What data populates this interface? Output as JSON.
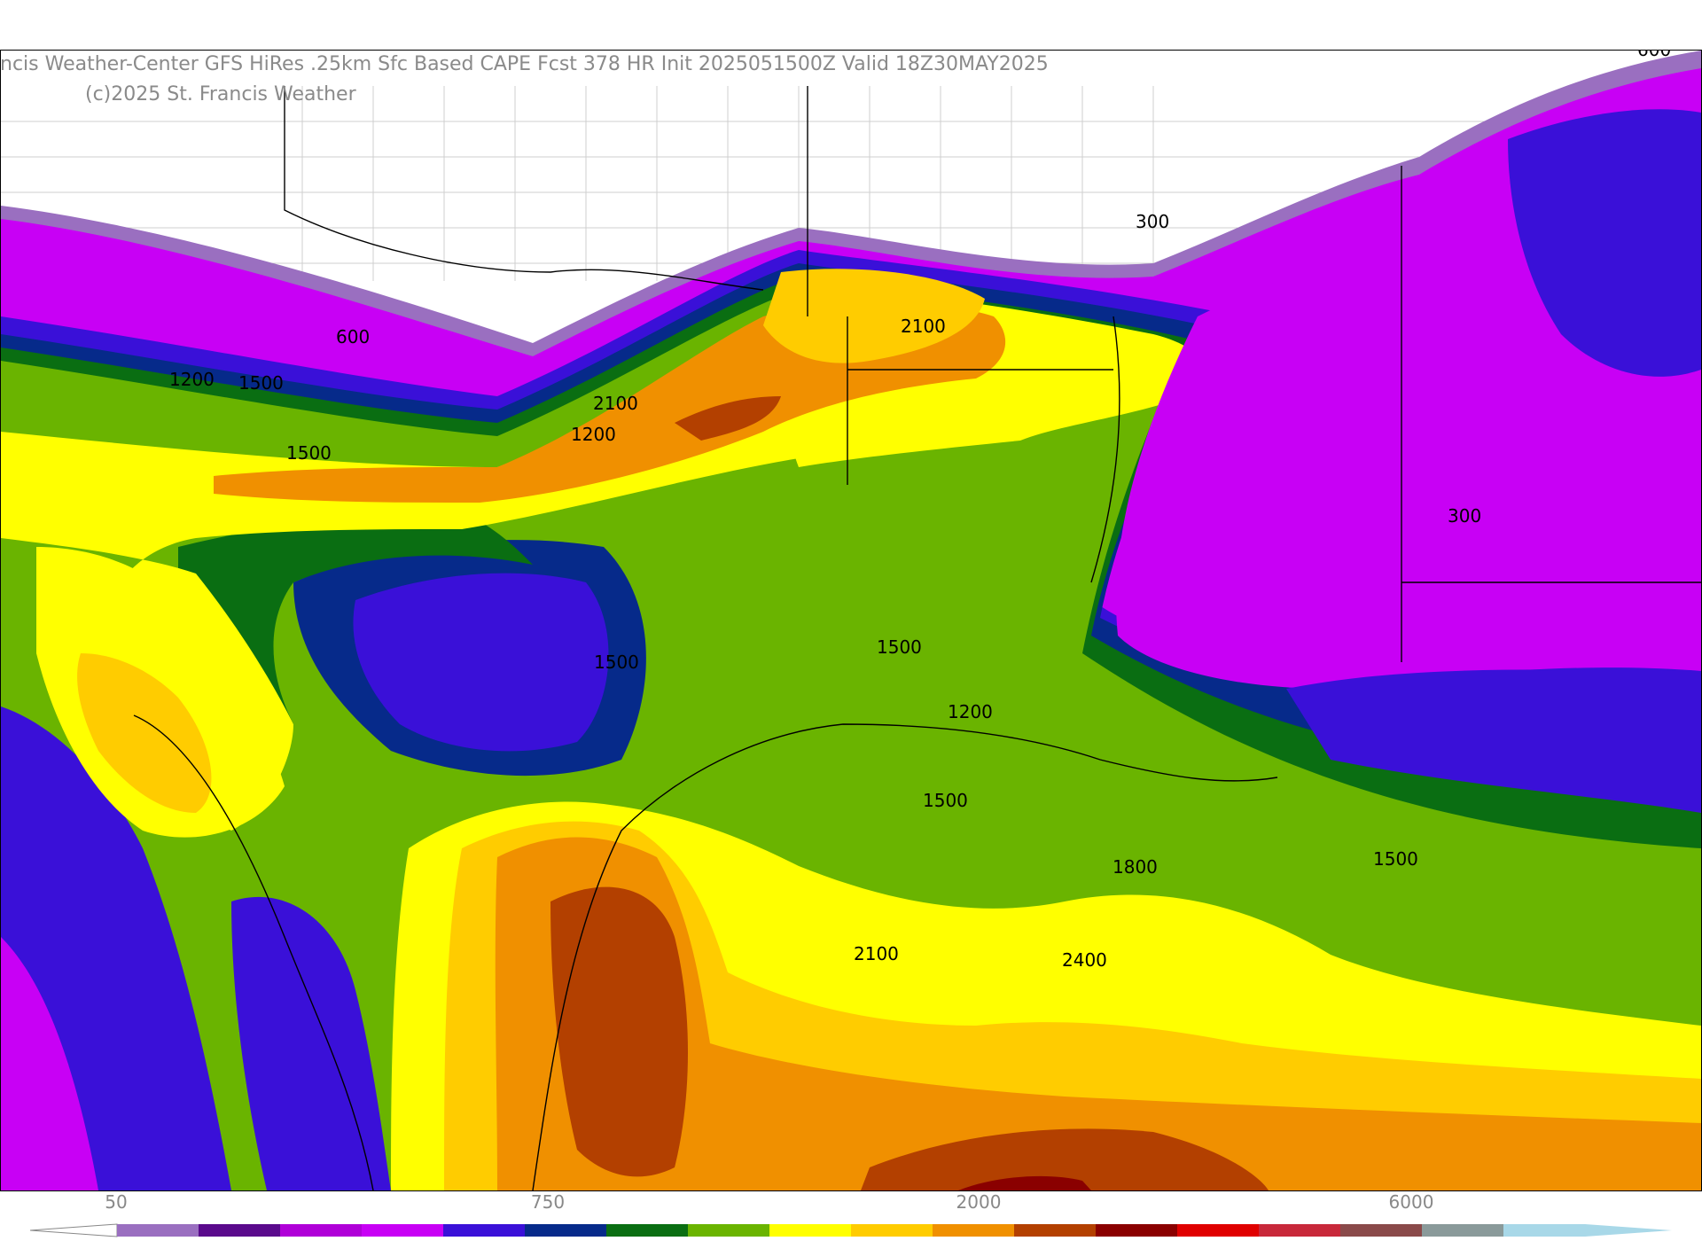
{
  "map": {
    "title": "ncis Weather-Center GFS HiRes .25km Sfc Based CAPE  Fcst 378 HR Init 2025051500Z  Valid 18Z30MAY2025",
    "copyright": "(c)2025 St. Francis Weather",
    "contour_labels": [
      "600",
      "300",
      "1200",
      "1500",
      "2100",
      "1200",
      "1500",
      "2100",
      "1500",
      "1500",
      "1200",
      "1500",
      "1800",
      "1500",
      "2100",
      "2400",
      "300",
      "600"
    ]
  },
  "colorbar": {
    "tick_labels": [
      "50",
      "750",
      "2000",
      "6000"
    ],
    "colors": [
      "#9a6fc0",
      "#5a0a8c",
      "#b000d8",
      "#c800f5",
      "#3a10d8",
      "#062a8a",
      "#0a6e12",
      "#6ab400",
      "#ffff00",
      "#ffcc00",
      "#f09000",
      "#b34000",
      "#8a0000",
      "#e00000",
      "#c8283a",
      "#8a4a4a",
      "#8a9a9a",
      "#a8d8e8"
    ]
  }
}
